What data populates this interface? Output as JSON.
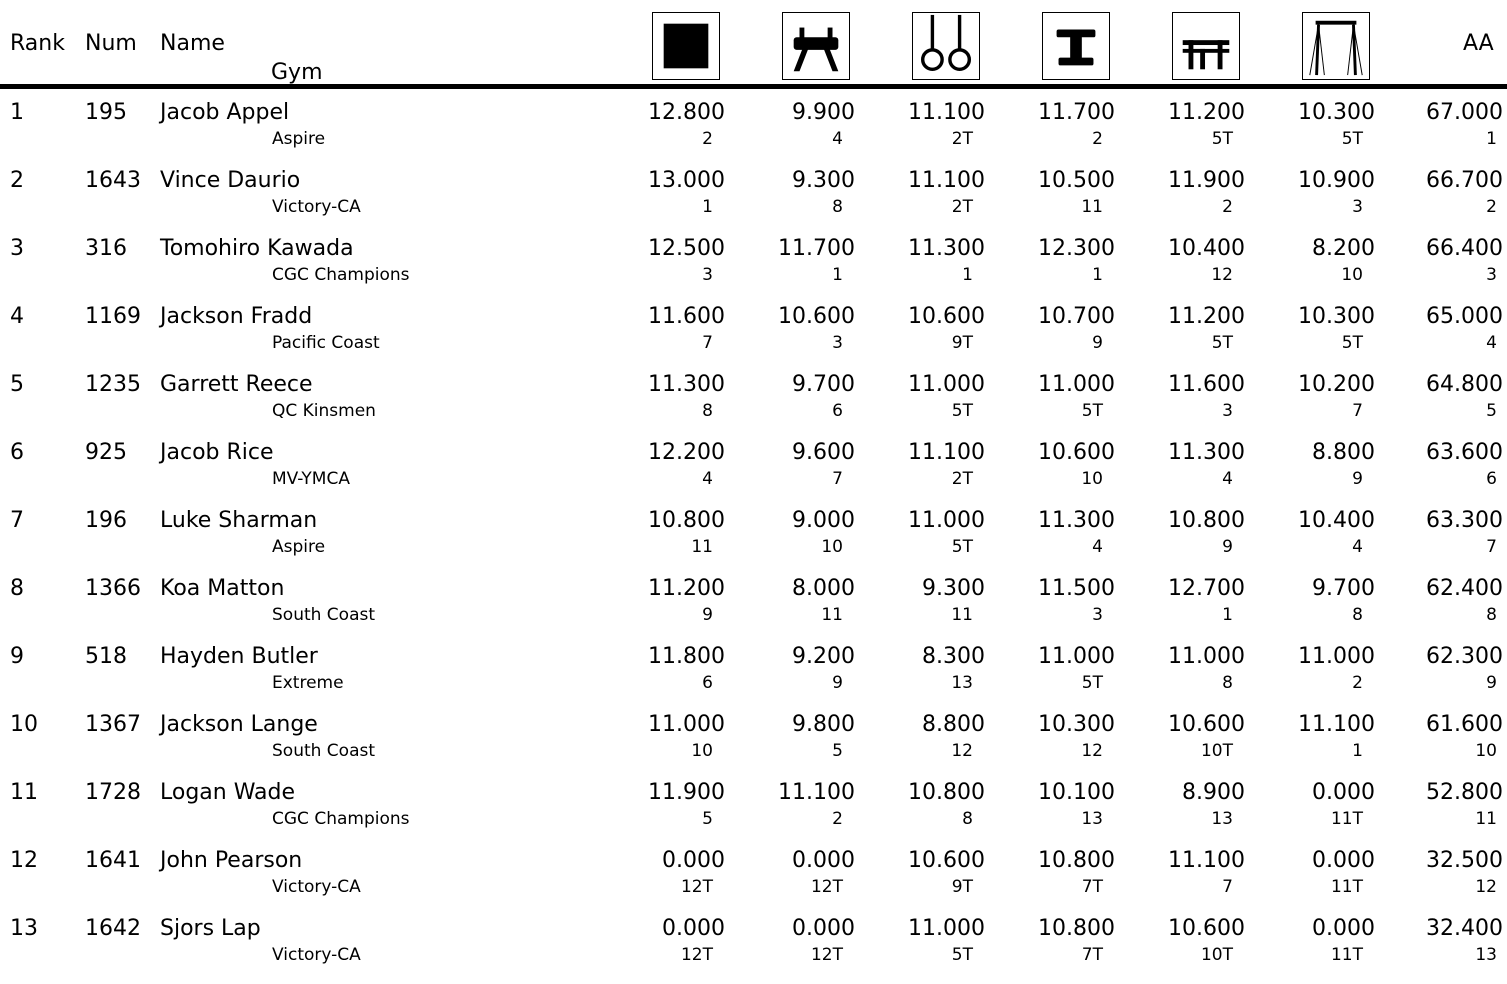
{
  "headers": {
    "rank": "Rank",
    "num": "Num",
    "name": "Name",
    "gym": "Gym",
    "all_around": "AA"
  },
  "event_icons": [
    "floor-icon",
    "pommel-horse-icon",
    "rings-icon",
    "vault-icon",
    "parallel-bars-icon",
    "high-bar-icon"
  ],
  "rows": [
    {
      "rank": "1",
      "num": "195",
      "name": "Jacob Appel",
      "gym": "Aspire",
      "events": [
        [
          "12.800",
          "2"
        ],
        [
          "9.900",
          "4"
        ],
        [
          "11.100",
          "2T"
        ],
        [
          "11.700",
          "2"
        ],
        [
          "11.200",
          "5T"
        ],
        [
          "10.300",
          "5T"
        ]
      ],
      "aa": [
        "67.000",
        "1"
      ]
    },
    {
      "rank": "2",
      "num": "1643",
      "name": "Vince Daurio",
      "gym": "Victory-CA",
      "events": [
        [
          "13.000",
          "1"
        ],
        [
          "9.300",
          "8"
        ],
        [
          "11.100",
          "2T"
        ],
        [
          "10.500",
          "11"
        ],
        [
          "11.900",
          "2"
        ],
        [
          "10.900",
          "3"
        ]
      ],
      "aa": [
        "66.700",
        "2"
      ]
    },
    {
      "rank": "3",
      "num": "316",
      "name": "Tomohiro Kawada",
      "gym": "CGC Champions",
      "events": [
        [
          "12.500",
          "3"
        ],
        [
          "11.700",
          "1"
        ],
        [
          "11.300",
          "1"
        ],
        [
          "12.300",
          "1"
        ],
        [
          "10.400",
          "12"
        ],
        [
          "8.200",
          "10"
        ]
      ],
      "aa": [
        "66.400",
        "3"
      ]
    },
    {
      "rank": "4",
      "num": "1169",
      "name": "Jackson Fradd",
      "gym": "Pacific Coast",
      "events": [
        [
          "11.600",
          "7"
        ],
        [
          "10.600",
          "3"
        ],
        [
          "10.600",
          "9T"
        ],
        [
          "10.700",
          "9"
        ],
        [
          "11.200",
          "5T"
        ],
        [
          "10.300",
          "5T"
        ]
      ],
      "aa": [
        "65.000",
        "4"
      ]
    },
    {
      "rank": "5",
      "num": "1235",
      "name": "Garrett Reece",
      "gym": "QC Kinsmen",
      "events": [
        [
          "11.300",
          "8"
        ],
        [
          "9.700",
          "6"
        ],
        [
          "11.000",
          "5T"
        ],
        [
          "11.000",
          "5T"
        ],
        [
          "11.600",
          "3"
        ],
        [
          "10.200",
          "7"
        ]
      ],
      "aa": [
        "64.800",
        "5"
      ]
    },
    {
      "rank": "6",
      "num": "925",
      "name": "Jacob Rice",
      "gym": "MV-YMCA",
      "events": [
        [
          "12.200",
          "4"
        ],
        [
          "9.600",
          "7"
        ],
        [
          "11.100",
          "2T"
        ],
        [
          "10.600",
          "10"
        ],
        [
          "11.300",
          "4"
        ],
        [
          "8.800",
          "9"
        ]
      ],
      "aa": [
        "63.600",
        "6"
      ]
    },
    {
      "rank": "7",
      "num": "196",
      "name": "Luke Sharman",
      "gym": "Aspire",
      "events": [
        [
          "10.800",
          "11"
        ],
        [
          "9.000",
          "10"
        ],
        [
          "11.000",
          "5T"
        ],
        [
          "11.300",
          "4"
        ],
        [
          "10.800",
          "9"
        ],
        [
          "10.400",
          "4"
        ]
      ],
      "aa": [
        "63.300",
        "7"
      ]
    },
    {
      "rank": "8",
      "num": "1366",
      "name": "Koa Matton",
      "gym": "South Coast",
      "events": [
        [
          "11.200",
          "9"
        ],
        [
          "8.000",
          "11"
        ],
        [
          "9.300",
          "11"
        ],
        [
          "11.500",
          "3"
        ],
        [
          "12.700",
          "1"
        ],
        [
          "9.700",
          "8"
        ]
      ],
      "aa": [
        "62.400",
        "8"
      ]
    },
    {
      "rank": "9",
      "num": "518",
      "name": "Hayden Butler",
      "gym": "Extreme",
      "events": [
        [
          "11.800",
          "6"
        ],
        [
          "9.200",
          "9"
        ],
        [
          "8.300",
          "13"
        ],
        [
          "11.000",
          "5T"
        ],
        [
          "11.000",
          "8"
        ],
        [
          "11.000",
          "2"
        ]
      ],
      "aa": [
        "62.300",
        "9"
      ]
    },
    {
      "rank": "10",
      "num": "1367",
      "name": "Jackson Lange",
      "gym": "South Coast",
      "events": [
        [
          "11.000",
          "10"
        ],
        [
          "9.800",
          "5"
        ],
        [
          "8.800",
          "12"
        ],
        [
          "10.300",
          "12"
        ],
        [
          "10.600",
          "10T"
        ],
        [
          "11.100",
          "1"
        ]
      ],
      "aa": [
        "61.600",
        "10"
      ]
    },
    {
      "rank": "11",
      "num": "1728",
      "name": "Logan Wade",
      "gym": "CGC Champions",
      "events": [
        [
          "11.900",
          "5"
        ],
        [
          "11.100",
          "2"
        ],
        [
          "10.800",
          "8"
        ],
        [
          "10.100",
          "13"
        ],
        [
          "8.900",
          "13"
        ],
        [
          "0.000",
          "11T"
        ]
      ],
      "aa": [
        "52.800",
        "11"
      ]
    },
    {
      "rank": "12",
      "num": "1641",
      "name": "John Pearson",
      "gym": "Victory-CA",
      "events": [
        [
          "0.000",
          "12T"
        ],
        [
          "0.000",
          "12T"
        ],
        [
          "10.600",
          "9T"
        ],
        [
          "10.800",
          "7T"
        ],
        [
          "11.100",
          "7"
        ],
        [
          "0.000",
          "11T"
        ]
      ],
      "aa": [
        "32.500",
        "12"
      ]
    },
    {
      "rank": "13",
      "num": "1642",
      "name": "Sjors Lap",
      "gym": "Victory-CA",
      "events": [
        [
          "0.000",
          "12T"
        ],
        [
          "0.000",
          "12T"
        ],
        [
          "11.000",
          "5T"
        ],
        [
          "10.800",
          "7T"
        ],
        [
          "10.600",
          "10T"
        ],
        [
          "0.000",
          "11T"
        ]
      ],
      "aa": [
        "32.400",
        "13"
      ]
    }
  ]
}
